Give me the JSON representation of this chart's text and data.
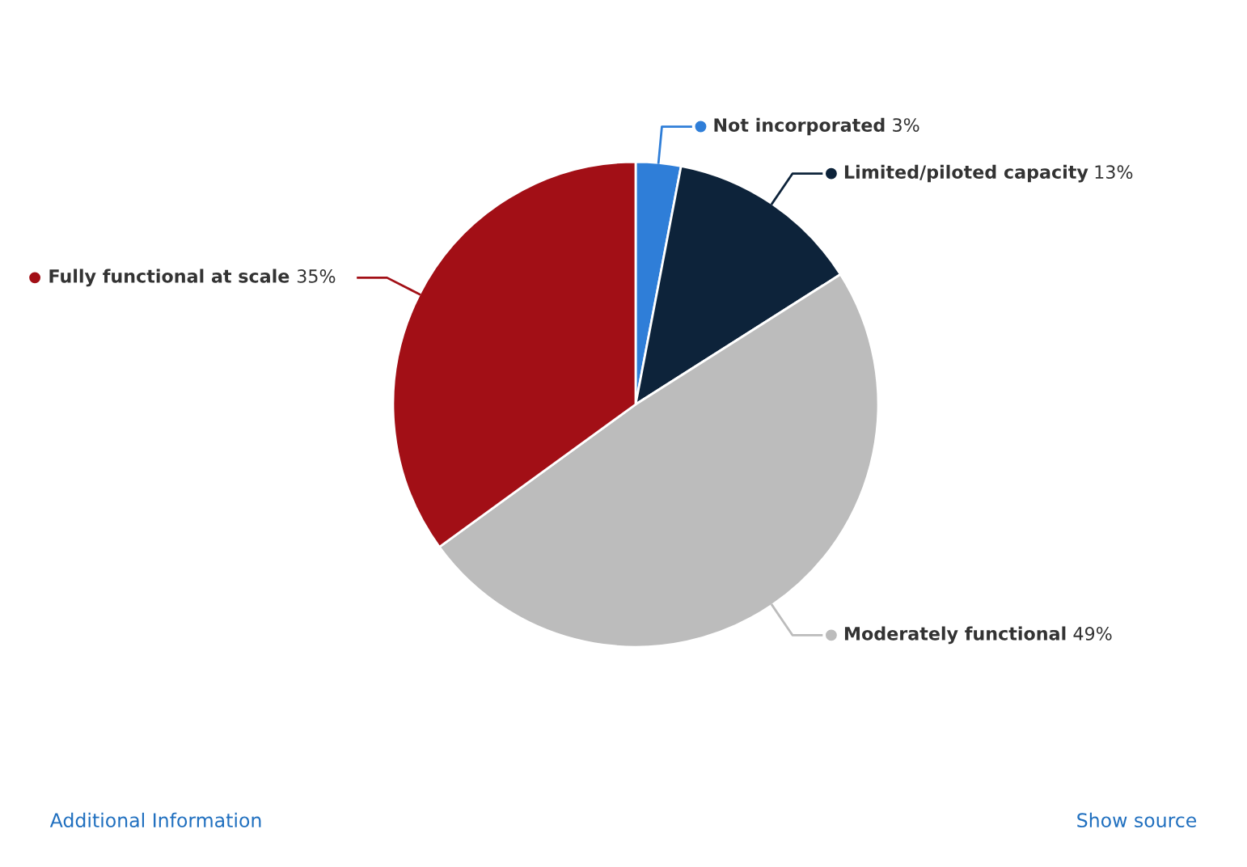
{
  "chart_data": {
    "type": "pie",
    "categories": [
      "Not incorporated",
      "Limited/piloted capacity",
      "Moderately functional",
      "Fully functional at scale"
    ],
    "values": [
      3,
      13,
      49,
      35
    ],
    "value_labels": [
      "3%",
      "13%",
      "49%",
      "35%"
    ],
    "colors": [
      "#2f7ed8",
      "#0d233a",
      "#bcbcbc",
      "#a20f16"
    ],
    "legend": "top left",
    "annotations": [
      "Additional Information",
      "Show source"
    ]
  }
}
